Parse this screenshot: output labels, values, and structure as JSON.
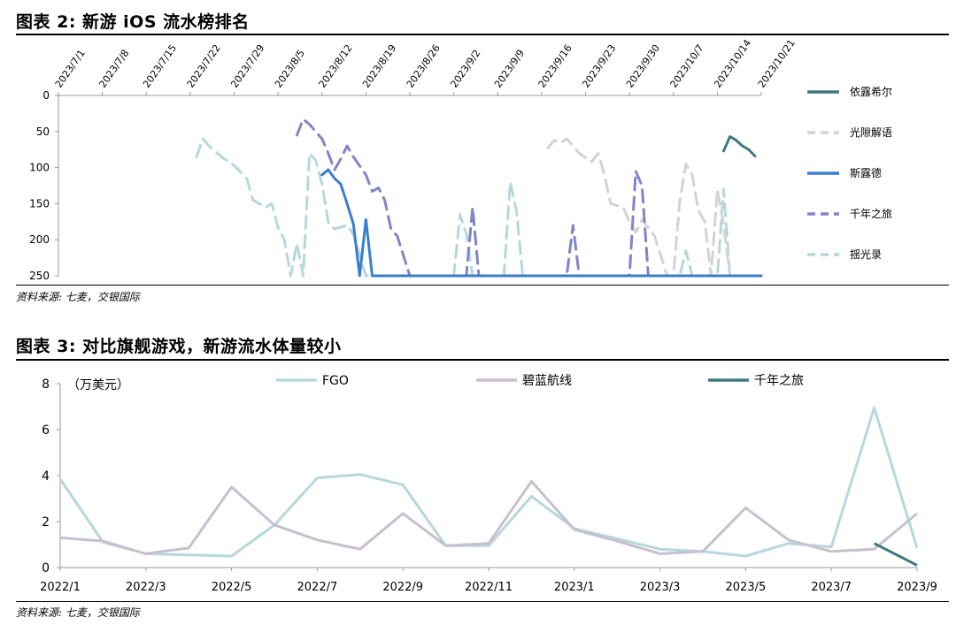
{
  "figure1": {
    "title": "图表 2: 新游 iOS 流水榜排名",
    "source": "资料来源: 七麦，交银国际"
  },
  "figure2": {
    "title": "图表 3: 对比旗舰游戏，新游流水体量较小",
    "source": "资料来源: 七麦，交银国际",
    "unit": "（万美元）"
  },
  "chart_data": [
    {
      "type": "line",
      "title": "新游 iOS 流水榜排名",
      "y_reversed": true,
      "ylim": [
        0,
        250
      ],
      "y_ticks": [
        0,
        50,
        100,
        150,
        200,
        250
      ],
      "x_ticks": [
        "2023/7/1",
        "2023/7/8",
        "2023/7/15",
        "2023/7/22",
        "2023/7/29",
        "2023/8/5",
        "2023/8/12",
        "2023/8/19",
        "2023/8/26",
        "2023/9/2",
        "2023/9/9",
        "2023/9/16",
        "2023/9/23",
        "2023/9/30",
        "2023/10/7",
        "2023/10/14",
        "2023/10/21"
      ],
      "x_start": "2023/7/1",
      "x_end": "2023/10/21",
      "legend_position": "right",
      "grid": false,
      "series": [
        {
          "name": "依露希尔",
          "color": "#3d7a82",
          "style": "solid",
          "points": [
            [
              "2023/10/15",
              77
            ],
            [
              "2023/10/16",
              57
            ],
            [
              "2023/10/17",
              62
            ],
            [
              "2023/10/18",
              70
            ],
            [
              "2023/10/19",
              75
            ],
            [
              "2023/10/20",
              84
            ]
          ]
        },
        {
          "name": "光隙解语",
          "color": "#d3d3d3",
          "style": "dashed",
          "points": [
            [
              "2023/9/17",
              73
            ],
            [
              "2023/9/18",
              62
            ],
            [
              "2023/9/19",
              66
            ],
            [
              "2023/9/20",
              60
            ],
            [
              "2023/9/22",
              80
            ],
            [
              "2023/9/24",
              92
            ],
            [
              "2023/9/25",
              80
            ],
            [
              "2023/9/26",
              110
            ],
            [
              "2023/9/27",
              150
            ],
            [
              "2023/9/29",
              155
            ],
            [
              "2023/9/30",
              175
            ],
            [
              "2023/10/1",
              190
            ],
            [
              "2023/10/2",
              172
            ],
            [
              "2023/10/4",
              195
            ],
            [
              "2023/10/6",
              250
            ],
            [
              "2023/10/7",
              250
            ],
            [
              "2023/10/8",
              148
            ],
            [
              "2023/10/9",
              95
            ],
            [
              "2023/10/10",
              110
            ],
            [
              "2023/10/11",
              160
            ],
            [
              "2023/10/12",
              175
            ],
            [
              "2023/10/13",
              250
            ],
            [
              "2023/10/14",
              130
            ],
            [
              "2023/10/15",
              180
            ],
            [
              "2023/10/16",
              250
            ],
            [
              "2023/10/21",
              250
            ]
          ]
        },
        {
          "name": "斯露德",
          "color": "#3a7ecb",
          "style": "solid",
          "points": [
            [
              "2023/8/12",
              110
            ],
            [
              "2023/8/13",
              103
            ],
            [
              "2023/8/14",
              115
            ],
            [
              "2023/8/15",
              123
            ],
            [
              "2023/8/16",
              150
            ],
            [
              "2023/8/17",
              178
            ],
            [
              "2023/8/18",
              250
            ],
            [
              "2023/8/19",
              172
            ],
            [
              "2023/8/20",
              250
            ],
            [
              "2023/10/21",
              250
            ]
          ]
        },
        {
          "name": "千年之旅",
          "color": "#8383c9",
          "style": "dashed",
          "points": [
            [
              "2023/8/8",
              55
            ],
            [
              "2023/8/9",
              33
            ],
            [
              "2023/8/10",
              40
            ],
            [
              "2023/8/12",
              60
            ],
            [
              "2023/8/13",
              80
            ],
            [
              "2023/8/14",
              103
            ],
            [
              "2023/8/15",
              88
            ],
            [
              "2023/8/16",
              70
            ],
            [
              "2023/8/17",
              85
            ],
            [
              "2023/8/19",
              110
            ],
            [
              "2023/8/20",
              133
            ],
            [
              "2023/8/21",
              128
            ],
            [
              "2023/8/22",
              145
            ],
            [
              "2023/8/23",
              185
            ],
            [
              "2023/8/24",
              195
            ],
            [
              "2023/8/26",
              250
            ],
            [
              "2023/9/4",
              250
            ],
            [
              "2023/9/5",
              155
            ],
            [
              "2023/9/6",
              250
            ],
            [
              "2023/9/20",
              250
            ],
            [
              "2023/9/21",
              180
            ],
            [
              "2023/9/22",
              250
            ],
            [
              "2023/9/30",
              250
            ],
            [
              "2023/10/1",
              105
            ],
            [
              "2023/10/2",
              125
            ],
            [
              "2023/10/3",
              250
            ],
            [
              "2023/10/21",
              250
            ]
          ]
        },
        {
          "name": "揺光录",
          "color": "#b6d8dc",
          "style": "dashed",
          "points": [
            [
              "2023/7/23",
              85
            ],
            [
              "2023/7/24",
              60
            ],
            [
              "2023/7/25",
              70
            ],
            [
              "2023/7/27",
              85
            ],
            [
              "2023/7/29",
              97
            ],
            [
              "2023/7/31",
              115
            ],
            [
              "2023/8/1",
              145
            ],
            [
              "2023/8/3",
              155
            ],
            [
              "2023/8/4",
              150
            ],
            [
              "2023/8/5",
              183
            ],
            [
              "2023/8/6",
              200
            ],
            [
              "2023/8/7",
              250
            ],
            [
              "2023/8/8",
              205
            ],
            [
              "2023/8/9",
              250
            ],
            [
              "2023/8/10",
              80
            ],
            [
              "2023/8/11",
              90
            ],
            [
              "2023/8/12",
              123
            ],
            [
              "2023/8/13",
              175
            ],
            [
              "2023/8/14",
              185
            ],
            [
              "2023/8/16",
              180
            ],
            [
              "2023/8/17",
              192
            ],
            [
              "2023/8/19",
              250
            ],
            [
              "2023/9/2",
              250
            ],
            [
              "2023/9/3",
              165
            ],
            [
              "2023/9/4",
              192
            ],
            [
              "2023/9/5",
              250
            ],
            [
              "2023/9/10",
              250
            ],
            [
              "2023/9/11",
              120
            ],
            [
              "2023/9/12",
              160
            ],
            [
              "2023/9/13",
              250
            ],
            [
              "2023/10/8",
              250
            ],
            [
              "2023/10/9",
              215
            ],
            [
              "2023/10/10",
              250
            ],
            [
              "2023/10/14",
              250
            ],
            [
              "2023/10/15",
              130
            ],
            [
              "2023/10/16",
              250
            ],
            [
              "2023/10/21",
              250
            ]
          ]
        }
      ]
    },
    {
      "type": "line",
      "title": "对比旗舰游戏，新游流水体量较小",
      "ylabel": "（万美元）",
      "ylim": [
        0,
        8
      ],
      "y_ticks": [
        0,
        2,
        4,
        6,
        8
      ],
      "categories": [
        "2022/1",
        "2022/2",
        "2022/3",
        "2022/4",
        "2022/5",
        "2022/6",
        "2022/7",
        "2022/8",
        "2022/9",
        "2022/10",
        "2022/11",
        "2022/12",
        "2023/1",
        "2023/2",
        "2023/3",
        "2023/4",
        "2023/5",
        "2023/6",
        "2023/7",
        "2023/8",
        "2023/9"
      ],
      "x_tick_labels": [
        "2022/1",
        "2022/3",
        "2022/5",
        "2022/7",
        "2022/9",
        "2022/11",
        "2023/1",
        "2023/3",
        "2023/5",
        "2023/7",
        "2023/9"
      ],
      "legend_position": "top",
      "grid": false,
      "series": [
        {
          "name": "FGO",
          "color": "#b6d8dc",
          "values": [
            3.85,
            1.1,
            0.6,
            0.55,
            0.5,
            1.85,
            3.9,
            4.05,
            3.6,
            0.95,
            0.95,
            3.1,
            1.7,
            1.25,
            0.8,
            0.7,
            0.5,
            1.05,
            0.9,
            6.95,
            0.85
          ]
        },
        {
          "name": "碧蓝航线",
          "color": "#c8bfcf",
          "values": [
            1.3,
            1.15,
            0.6,
            0.85,
            3.5,
            1.85,
            1.2,
            0.8,
            2.35,
            0.95,
            1.05,
            3.75,
            1.65,
            1.15,
            0.6,
            0.7,
            2.6,
            1.2,
            0.7,
            0.8,
            2.35
          ]
        },
        {
          "name": "千年之旅",
          "color": "#3d7a82",
          "values": [
            null,
            null,
            null,
            null,
            null,
            null,
            null,
            null,
            null,
            null,
            null,
            null,
            null,
            null,
            null,
            null,
            null,
            null,
            null,
            1.05,
            0.1
          ]
        }
      ]
    }
  ]
}
